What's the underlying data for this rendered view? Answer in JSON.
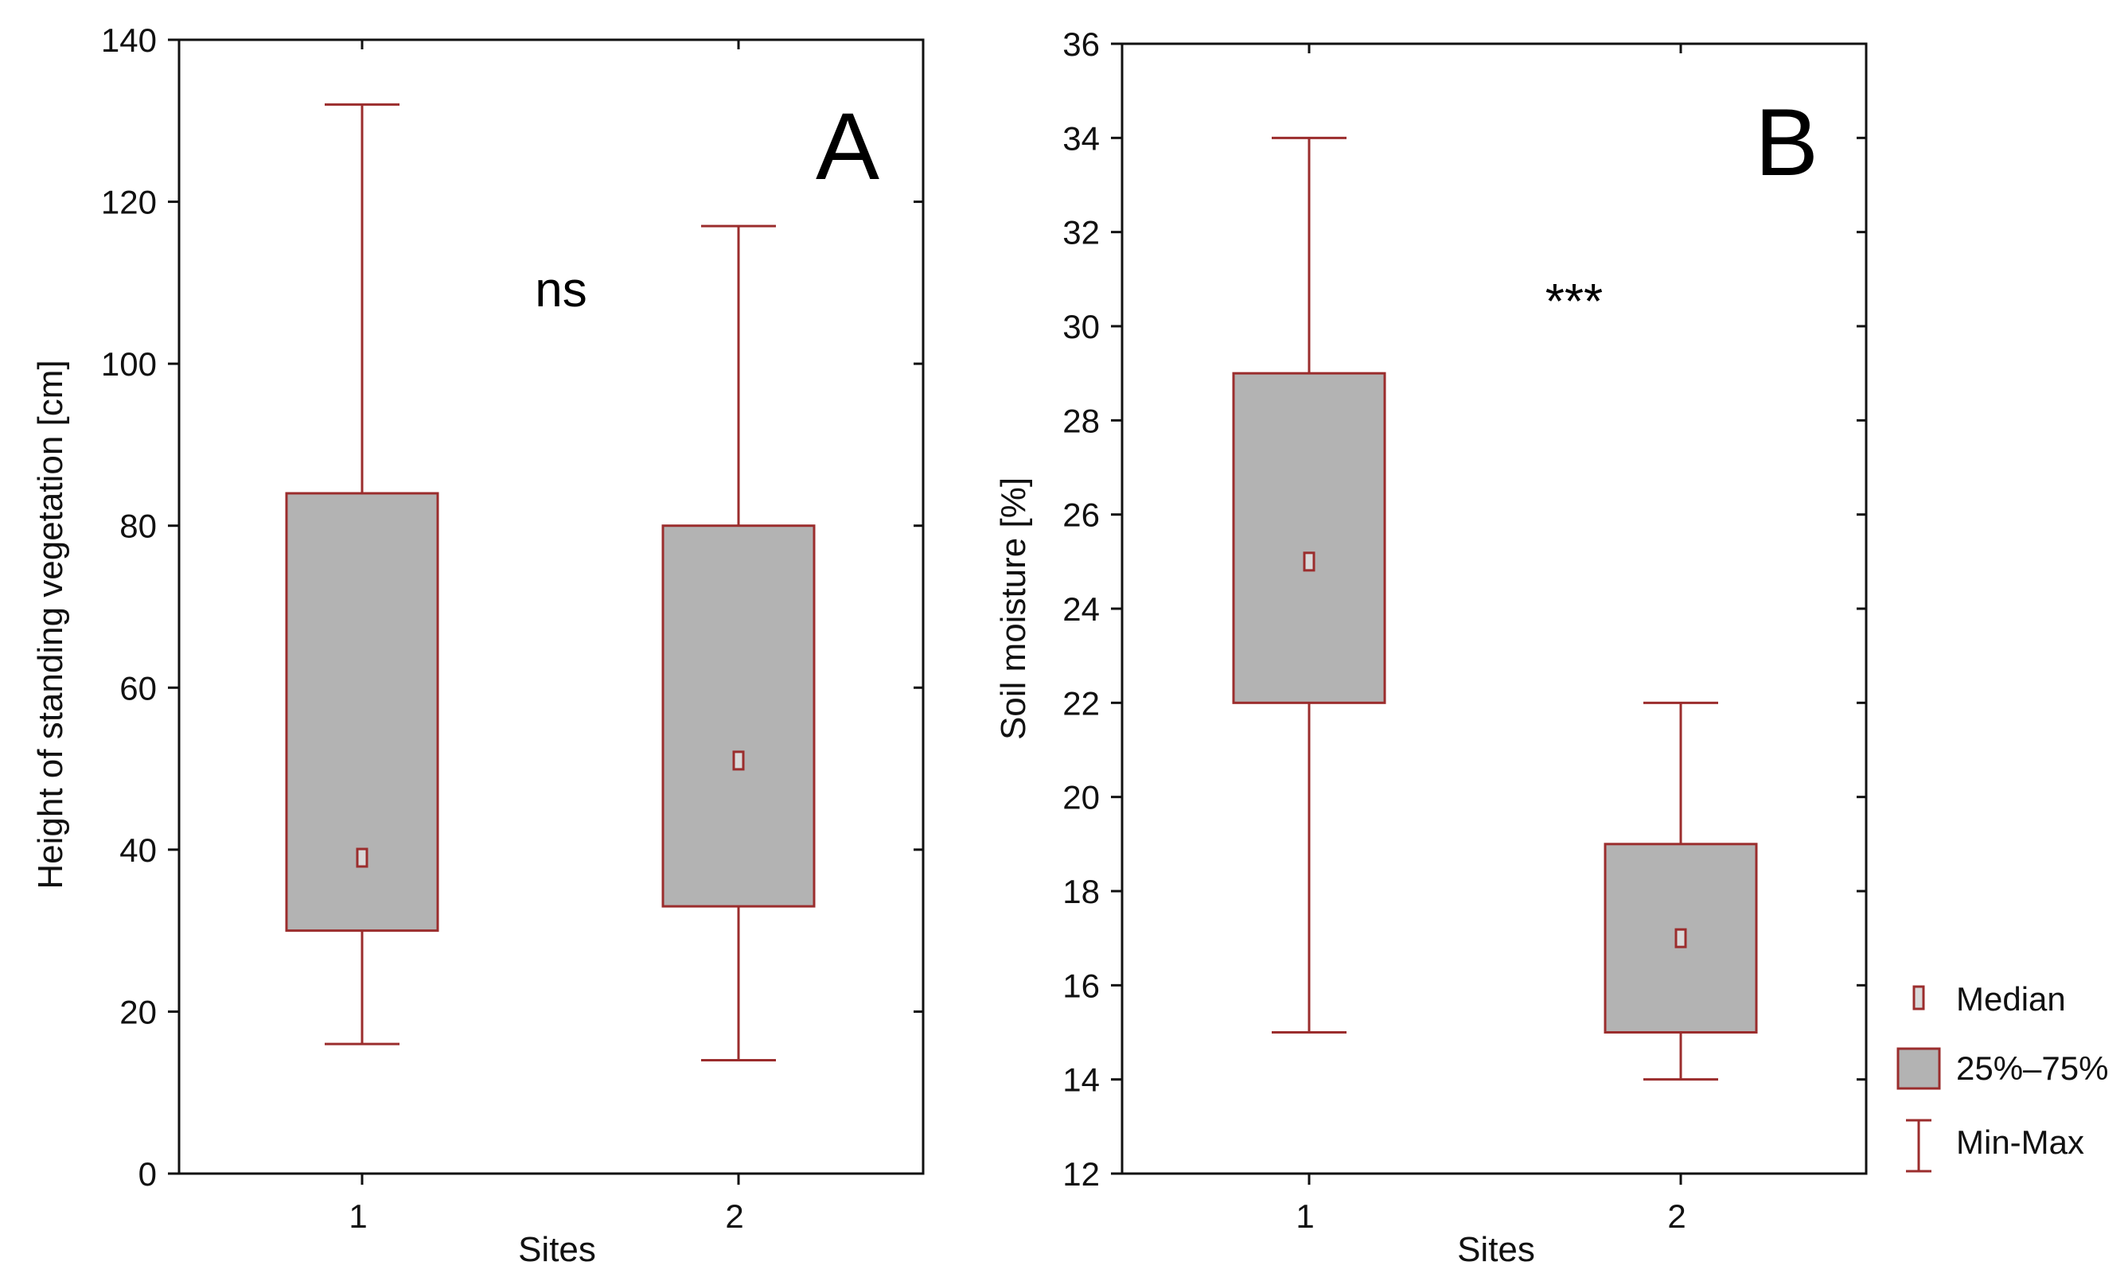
{
  "chart_data": [
    {
      "type": "boxplot",
      "panel": "A",
      "significance": "ns",
      "xlabel": "Sites",
      "ylabel": "Height of standing vegetation [cm]",
      "ylim": [
        0,
        140
      ],
      "yticks": [
        0,
        20,
        40,
        60,
        80,
        100,
        120,
        140
      ],
      "categories": [
        "1",
        "2"
      ],
      "boxes": [
        {
          "site": "1",
          "min": 16,
          "q1": 30,
          "median": 39,
          "q3": 84,
          "max": 132
        },
        {
          "site": "2",
          "min": 14,
          "q1": 33,
          "median": 51,
          "q3": 80,
          "max": 117
        }
      ]
    },
    {
      "type": "boxplot",
      "panel": "B",
      "significance": "***",
      "xlabel": "Sites",
      "ylabel": "Soil moisture [%]",
      "ylim": [
        12,
        36
      ],
      "yticks": [
        12,
        14,
        16,
        18,
        20,
        22,
        24,
        26,
        28,
        30,
        32,
        34,
        36
      ],
      "categories": [
        "1",
        "2"
      ],
      "boxes": [
        {
          "site": "1",
          "min": 15,
          "q1": 22,
          "median": 25,
          "q3": 29,
          "max": 34
        },
        {
          "site": "2",
          "min": 14,
          "q1": 15,
          "median": 17,
          "q3": 19,
          "max": 22
        }
      ]
    }
  ],
  "legend": {
    "median": "Median",
    "box": "25%–75%",
    "whisker": "Min-Max"
  },
  "colors": {
    "box_fill": "#b3b3b3",
    "box_stroke": "#9b2d2d",
    "axis": "#111111"
  }
}
